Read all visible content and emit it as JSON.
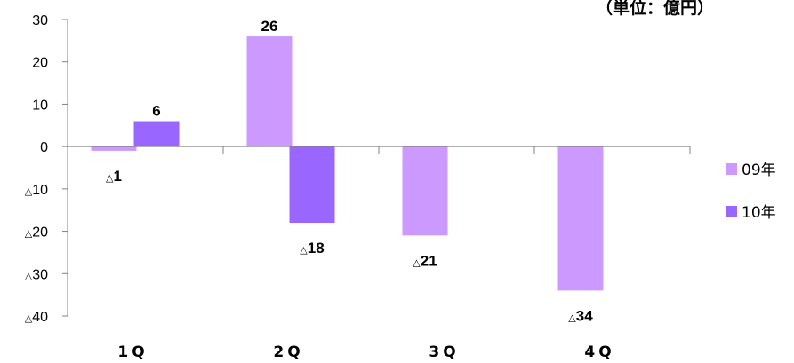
{
  "unit_label": "（単位：億円）",
  "chart_data": {
    "type": "bar",
    "title": "",
    "xlabel": "",
    "ylabel": "",
    "categories": [
      "1Q",
      "2Q",
      "3Q",
      "4Q"
    ],
    "series": [
      {
        "name": "09年",
        "values": [
          -1,
          26,
          -21,
          -34
        ],
        "labels": [
          "△1",
          "26",
          "△21",
          "△34"
        ],
        "color": "#cc99ff"
      },
      {
        "name": "10年",
        "values": [
          6,
          -18,
          null,
          null
        ],
        "labels": [
          "6",
          "△18",
          "",
          ""
        ],
        "color": "#9966ff"
      }
    ],
    "ylim": [
      -40,
      30
    ],
    "yticks": [
      30,
      20,
      10,
      0,
      -10,
      -20,
      -30,
      -40
    ],
    "ytick_labels": [
      "30",
      "20",
      "10",
      "0",
      "△10",
      "△20",
      "△30",
      "△40"
    ],
    "legend_position": "right",
    "grid": false
  }
}
